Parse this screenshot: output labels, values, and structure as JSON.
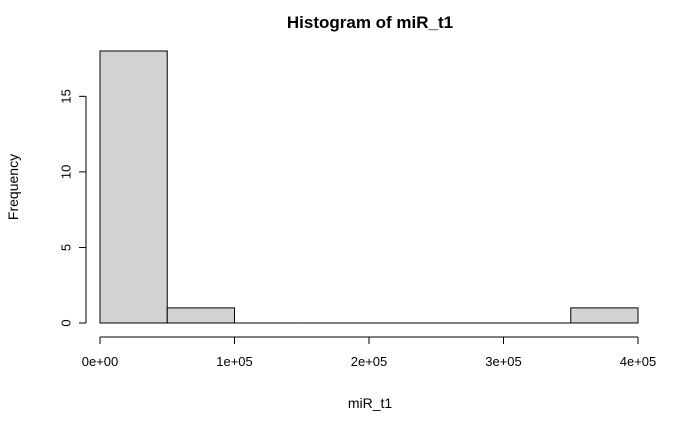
{
  "chart_data": {
    "type": "bar",
    "subtype": "histogram",
    "title": "Histogram of miR_t1",
    "xlabel": "miR_t1",
    "ylabel": "Frequency",
    "bins": [
      {
        "start": 0,
        "end": 50000,
        "count": 18
      },
      {
        "start": 50000,
        "end": 100000,
        "count": 1
      },
      {
        "start": 100000,
        "end": 150000,
        "count": 0
      },
      {
        "start": 150000,
        "end": 200000,
        "count": 0
      },
      {
        "start": 200000,
        "end": 250000,
        "count": 0
      },
      {
        "start": 250000,
        "end": 300000,
        "count": 0
      },
      {
        "start": 300000,
        "end": 350000,
        "count": 0
      },
      {
        "start": 350000,
        "end": 400000,
        "count": 1
      }
    ],
    "xlim": [
      0,
      400000
    ],
    "ylim": [
      0,
      18
    ],
    "x_ticks": [
      {
        "value": 0,
        "label": "0e+00"
      },
      {
        "value": 100000,
        "label": "1e+05"
      },
      {
        "value": 200000,
        "label": "2e+05"
      },
      {
        "value": 300000,
        "label": "3e+05"
      },
      {
        "value": 400000,
        "label": "4e+05"
      }
    ],
    "y_ticks": [
      {
        "value": 0,
        "label": "0"
      },
      {
        "value": 5,
        "label": "5"
      },
      {
        "value": 10,
        "label": "10"
      },
      {
        "value": 15,
        "label": "15"
      }
    ],
    "bar_fill": "#d3d3d3",
    "bar_stroke": "#000000",
    "grid": false,
    "legend": "none"
  }
}
